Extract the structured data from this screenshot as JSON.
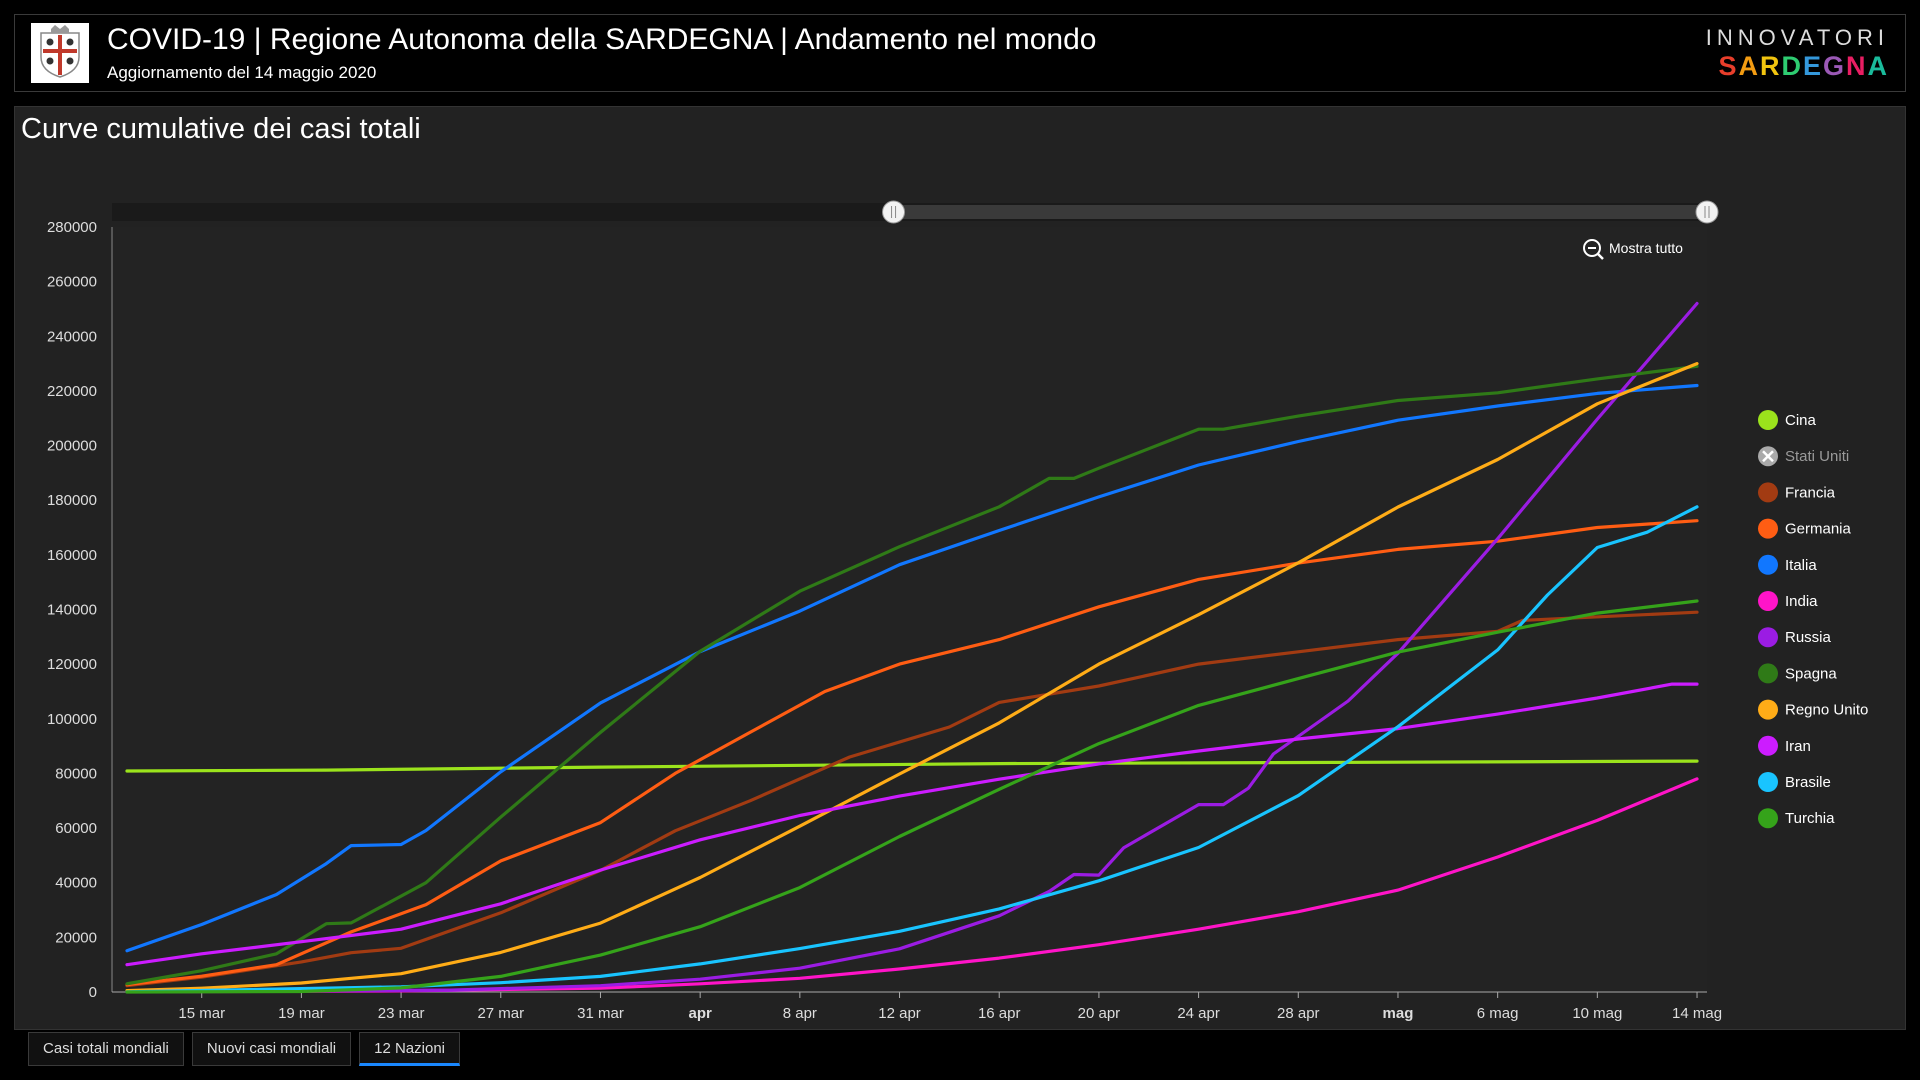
{
  "header": {
    "title": "COVID-19 | Regione Autonoma della SARDEGNA | Andamento nel mondo",
    "subtitle": "Aggiornamento del 14 maggio 2020",
    "brand_top": "INNOVATORI",
    "brand_bottom": "SARDEGNA",
    "brand_colors": [
      "#e83e2b",
      "#f39c12",
      "#f1c40f",
      "#2ecc71",
      "#3498db",
      "#9b59b6",
      "#e91e63",
      "#1abc9c"
    ]
  },
  "panel": {
    "title": "Curve cumulative dei casi totali",
    "reset_zoom_label": "Mostra tutto",
    "reset_zoom_icon": "zoom-out-icon"
  },
  "tabs": [
    {
      "label": "Casi totali mondiali",
      "active": false
    },
    {
      "label": "Nuovi casi mondiali",
      "active": false
    },
    {
      "label": "12 Nazioni",
      "active": true
    }
  ],
  "chart_data": {
    "type": "line",
    "title": "Curve cumulative dei casi totali",
    "xlabel": "",
    "ylabel": "",
    "x_start": "2020-03-12",
    "x_end": "2020-05-14",
    "x_ticks": [
      {
        "label": "15 mar",
        "date": "2020-03-15",
        "bold": false
      },
      {
        "label": "19 mar",
        "date": "2020-03-19",
        "bold": false
      },
      {
        "label": "23 mar",
        "date": "2020-03-23",
        "bold": false
      },
      {
        "label": "27 mar",
        "date": "2020-03-27",
        "bold": false
      },
      {
        "label": "31 mar",
        "date": "2020-03-31",
        "bold": false
      },
      {
        "label": "apr",
        "date": "2020-04-04",
        "bold": true
      },
      {
        "label": "8 apr",
        "date": "2020-04-08",
        "bold": false
      },
      {
        "label": "12 apr",
        "date": "2020-04-12",
        "bold": false
      },
      {
        "label": "16 apr",
        "date": "2020-04-16",
        "bold": false
      },
      {
        "label": "20 apr",
        "date": "2020-04-20",
        "bold": false
      },
      {
        "label": "24 apr",
        "date": "2020-04-24",
        "bold": false
      },
      {
        "label": "28 apr",
        "date": "2020-04-28",
        "bold": false
      },
      {
        "label": "mag",
        "date": "2020-05-02",
        "bold": true
      },
      {
        "label": "6 mag",
        "date": "2020-05-06",
        "bold": false
      },
      {
        "label": "10 mag",
        "date": "2020-05-10",
        "bold": false
      },
      {
        "label": "14 mag",
        "date": "2020-05-14",
        "bold": false
      }
    ],
    "y_ticks": [
      "0",
      "20000",
      "40000",
      "60000",
      "80000",
      "100000",
      "120000",
      "140000",
      "160000",
      "180000",
      "200000",
      "220000",
      "240000",
      "260000",
      "280000"
    ],
    "ylim": [
      0,
      280000
    ],
    "grid": false,
    "legend_position": "right",
    "series": [
      {
        "name": "Cina",
        "color": "#9be31c",
        "hidden": false,
        "points": [
          [
            "2020-03-12",
            80900
          ],
          [
            "2020-03-20",
            81200
          ],
          [
            "2020-03-31",
            82300
          ],
          [
            "2020-04-16",
            83600
          ],
          [
            "2020-05-14",
            84500
          ]
        ]
      },
      {
        "name": "Stati Uniti",
        "color": "#888888",
        "hidden": true,
        "points": []
      },
      {
        "name": "Francia",
        "color": "#a23b12",
        "hidden": false,
        "points": [
          [
            "2020-03-12",
            2300
          ],
          [
            "2020-03-15",
            5400
          ],
          [
            "2020-03-19",
            11000
          ],
          [
            "2020-03-21",
            14400
          ],
          [
            "2020-03-23",
            16000
          ],
          [
            "2020-03-27",
            29000
          ],
          [
            "2020-03-31",
            44500
          ],
          [
            "2020-04-03",
            59000
          ],
          [
            "2020-04-06",
            70000
          ],
          [
            "2020-04-10",
            86000
          ],
          [
            "2020-04-14",
            97000
          ],
          [
            "2020-04-16",
            106000
          ],
          [
            "2020-04-18",
            109000
          ],
          [
            "2020-04-20",
            112000
          ],
          [
            "2020-04-24",
            120000
          ],
          [
            "2020-04-28",
            124500
          ],
          [
            "2020-05-02",
            129000
          ],
          [
            "2020-05-06",
            132000
          ],
          [
            "2020-05-07",
            136000
          ],
          [
            "2020-05-14",
            139000
          ]
        ]
      },
      {
        "name": "Germania",
        "color": "#ff5d13",
        "hidden": false,
        "points": [
          [
            "2020-03-12",
            2700
          ],
          [
            "2020-03-15",
            5800
          ],
          [
            "2020-03-18",
            10000
          ],
          [
            "2020-03-21",
            22000
          ],
          [
            "2020-03-24",
            32000
          ],
          [
            "2020-03-27",
            48000
          ],
          [
            "2020-03-31",
            62000
          ],
          [
            "2020-04-03",
            80000
          ],
          [
            "2020-04-06",
            95000
          ],
          [
            "2020-04-09",
            110000
          ],
          [
            "2020-04-12",
            120000
          ],
          [
            "2020-04-16",
            129000
          ],
          [
            "2020-04-20",
            141000
          ],
          [
            "2020-04-24",
            151000
          ],
          [
            "2020-04-28",
            157000
          ],
          [
            "2020-05-02",
            162000
          ],
          [
            "2020-05-06",
            165000
          ],
          [
            "2020-05-10",
            170000
          ],
          [
            "2020-05-14",
            172500
          ]
        ]
      },
      {
        "name": "Italia",
        "color": "#1177ff",
        "hidden": false,
        "points": [
          [
            "2020-03-12",
            15100
          ],
          [
            "2020-03-15",
            24700
          ],
          [
            "2020-03-18",
            35700
          ],
          [
            "2020-03-20",
            47000
          ],
          [
            "2020-03-21",
            53600
          ],
          [
            "2020-03-23",
            54000
          ],
          [
            "2020-03-24",
            59100
          ],
          [
            "2020-03-27",
            80600
          ],
          [
            "2020-03-31",
            105800
          ],
          [
            "2020-04-04",
            124600
          ],
          [
            "2020-04-08",
            139400
          ],
          [
            "2020-04-12",
            156400
          ],
          [
            "2020-04-16",
            168900
          ],
          [
            "2020-04-20",
            181200
          ],
          [
            "2020-04-24",
            192900
          ],
          [
            "2020-04-28",
            201500
          ],
          [
            "2020-05-02",
            209300
          ],
          [
            "2020-05-06",
            214500
          ],
          [
            "2020-05-10",
            219100
          ],
          [
            "2020-05-14",
            222000
          ]
        ]
      },
      {
        "name": "India",
        "color": "#ff14c8",
        "hidden": false,
        "points": [
          [
            "2020-03-12",
            70
          ],
          [
            "2020-03-23",
            400
          ],
          [
            "2020-03-31",
            1400
          ],
          [
            "2020-04-04",
            3000
          ],
          [
            "2020-04-08",
            5000
          ],
          [
            "2020-04-12",
            8400
          ],
          [
            "2020-04-16",
            12400
          ],
          [
            "2020-04-20",
            17300
          ],
          [
            "2020-04-24",
            23000
          ],
          [
            "2020-04-28",
            29400
          ],
          [
            "2020-05-02",
            37300
          ],
          [
            "2020-05-06",
            49400
          ],
          [
            "2020-05-10",
            62800
          ],
          [
            "2020-05-14",
            78000
          ]
        ]
      },
      {
        "name": "Russia",
        "color": "#9b1ce3",
        "hidden": false,
        "points": [
          [
            "2020-03-12",
            30
          ],
          [
            "2020-03-25",
            700
          ],
          [
            "2020-03-31",
            2300
          ],
          [
            "2020-04-04",
            4700
          ],
          [
            "2020-04-08",
            8700
          ],
          [
            "2020-04-12",
            15800
          ],
          [
            "2020-04-16",
            27900
          ],
          [
            "2020-04-18",
            36800
          ],
          [
            "2020-04-19",
            43000
          ],
          [
            "2020-04-20",
            42800
          ],
          [
            "2020-04-21",
            52800
          ],
          [
            "2020-04-24",
            68600
          ],
          [
            "2020-04-25",
            68600
          ],
          [
            "2020-04-26",
            74600
          ],
          [
            "2020-04-27",
            87100
          ],
          [
            "2020-04-30",
            106500
          ],
          [
            "2020-05-02",
            124000
          ],
          [
            "2020-05-06",
            165900
          ],
          [
            "2020-05-10",
            209700
          ],
          [
            "2020-05-14",
            252000
          ]
        ]
      },
      {
        "name": "Spagna",
        "color": "#2f7a17",
        "hidden": false,
        "points": [
          [
            "2020-03-12",
            3000
          ],
          [
            "2020-03-15",
            7800
          ],
          [
            "2020-03-18",
            14000
          ],
          [
            "2020-03-20",
            25000
          ],
          [
            "2020-03-21",
            25300
          ],
          [
            "2020-03-24",
            40000
          ],
          [
            "2020-03-27",
            64000
          ],
          [
            "2020-03-31",
            95000
          ],
          [
            "2020-04-04",
            124700
          ],
          [
            "2020-04-08",
            146700
          ],
          [
            "2020-04-12",
            163000
          ],
          [
            "2020-04-16",
            177600
          ],
          [
            "2020-04-18",
            188000
          ],
          [
            "2020-04-19",
            188000
          ],
          [
            "2020-04-20",
            191700
          ],
          [
            "2020-04-24",
            206000
          ],
          [
            "2020-04-25",
            206000
          ],
          [
            "2020-04-28",
            210800
          ],
          [
            "2020-05-02",
            216500
          ],
          [
            "2020-05-06",
            219300
          ],
          [
            "2020-05-10",
            224400
          ],
          [
            "2020-05-14",
            229000
          ]
        ]
      },
      {
        "name": "Regno Unito",
        "color": "#ffac17",
        "hidden": false,
        "points": [
          [
            "2020-03-12",
            500
          ],
          [
            "2020-03-15",
            1400
          ],
          [
            "2020-03-19",
            3300
          ],
          [
            "2020-03-21",
            5000
          ],
          [
            "2020-03-23",
            6700
          ],
          [
            "2020-03-27",
            14500
          ],
          [
            "2020-03-31",
            25200
          ],
          [
            "2020-04-04",
            41900
          ],
          [
            "2020-04-08",
            60700
          ],
          [
            "2020-04-12",
            79800
          ],
          [
            "2020-04-16",
            98500
          ],
          [
            "2020-04-20",
            120000
          ],
          [
            "2020-04-24",
            138100
          ],
          [
            "2020-04-28",
            157100
          ],
          [
            "2020-05-02",
            177500
          ],
          [
            "2020-05-06",
            194900
          ],
          [
            "2020-05-10",
            215300
          ],
          [
            "2020-05-14",
            230000
          ]
        ]
      },
      {
        "name": "Iran",
        "color": "#cc1cff",
        "hidden": false,
        "points": [
          [
            "2020-03-12",
            10000
          ],
          [
            "2020-03-15",
            14000
          ],
          [
            "2020-03-19",
            18400
          ],
          [
            "2020-03-23",
            23000
          ],
          [
            "2020-03-27",
            32300
          ],
          [
            "2020-03-31",
            44600
          ],
          [
            "2020-04-04",
            55700
          ],
          [
            "2020-04-08",
            64600
          ],
          [
            "2020-04-12",
            71700
          ],
          [
            "2020-04-16",
            77900
          ],
          [
            "2020-04-20",
            83500
          ],
          [
            "2020-04-24",
            88200
          ],
          [
            "2020-04-28",
            92600
          ],
          [
            "2020-05-02",
            96400
          ],
          [
            "2020-05-06",
            101700
          ],
          [
            "2020-05-10",
            107600
          ],
          [
            "2020-05-13",
            112700
          ],
          [
            "2020-05-14",
            112700
          ]
        ]
      },
      {
        "name": "Brasile",
        "color": "#19c4ff",
        "hidden": false,
        "points": [
          [
            "2020-03-12",
            50
          ],
          [
            "2020-03-23",
            1900
          ],
          [
            "2020-03-27",
            3400
          ],
          [
            "2020-03-31",
            5700
          ],
          [
            "2020-04-04",
            10300
          ],
          [
            "2020-04-08",
            15900
          ],
          [
            "2020-04-12",
            22200
          ],
          [
            "2020-04-16",
            30400
          ],
          [
            "2020-04-20",
            40700
          ],
          [
            "2020-04-24",
            52900
          ],
          [
            "2020-04-28",
            71900
          ],
          [
            "2020-05-02",
            97100
          ],
          [
            "2020-05-06",
            125200
          ],
          [
            "2020-05-08",
            145300
          ],
          [
            "2020-05-10",
            162700
          ],
          [
            "2020-05-12",
            168300
          ],
          [
            "2020-05-14",
            177600
          ]
        ]
      },
      {
        "name": "Turchia",
        "color": "#35a31a",
        "hidden": false,
        "points": [
          [
            "2020-03-12",
            1
          ],
          [
            "2020-03-19",
            200
          ],
          [
            "2020-03-23",
            1500
          ],
          [
            "2020-03-27",
            5700
          ],
          [
            "2020-03-31",
            13500
          ],
          [
            "2020-04-04",
            23900
          ],
          [
            "2020-04-08",
            38200
          ],
          [
            "2020-04-12",
            56900
          ],
          [
            "2020-04-16",
            74200
          ],
          [
            "2020-04-20",
            90900
          ],
          [
            "2020-04-24",
            104900
          ],
          [
            "2020-04-28",
            114700
          ],
          [
            "2020-05-02",
            124400
          ],
          [
            "2020-05-06",
            131700
          ],
          [
            "2020-05-10",
            138700
          ],
          [
            "2020-05-14",
            143100
          ]
        ]
      }
    ]
  }
}
